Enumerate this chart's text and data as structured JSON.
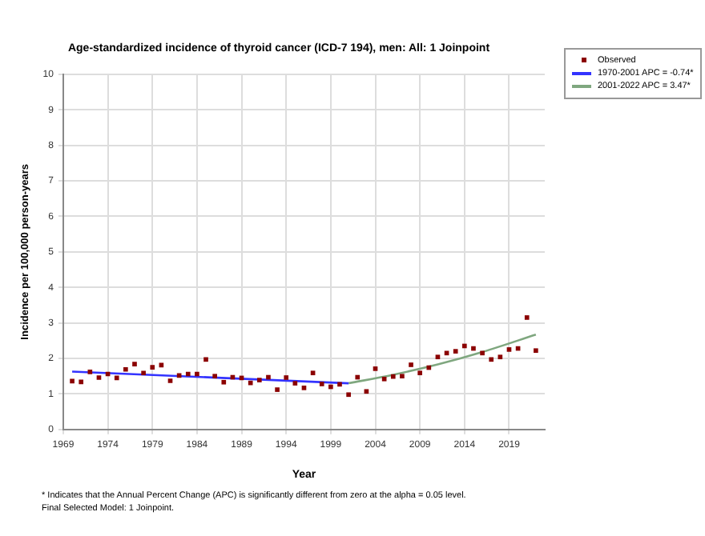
{
  "chart_data": {
    "type": "scatter",
    "title": "Age-standardized incidence of thyroid cancer (ICD-7 194), men: All: 1 Joinpoint",
    "xlabel": "Year",
    "ylabel": "Incidence per 100,000 person-years",
    "xlim": [
      1969,
      2023
    ],
    "xticks": [
      1969,
      1974,
      1979,
      1984,
      1989,
      1994,
      1999,
      2004,
      2009,
      2014,
      2019
    ],
    "ylim": [
      0,
      10
    ],
    "yticks": [
      0,
      1,
      2,
      3,
      4,
      5,
      6,
      7,
      8,
      9,
      10
    ],
    "grid": true,
    "legend": "top right",
    "series": [
      {
        "name": "Observed",
        "marker": "square",
        "color": "#8b0000",
        "x": [
          1970,
          1971,
          1972,
          1973,
          1974,
          1975,
          1976,
          1977,
          1978,
          1979,
          1980,
          1981,
          1982,
          1983,
          1984,
          1985,
          1986,
          1987,
          1988,
          1989,
          1990,
          1991,
          1992,
          1993,
          1994,
          1995,
          1996,
          1997,
          1998,
          1999,
          2000,
          2001,
          2002,
          2003,
          2004,
          2005,
          2006,
          2007,
          2008,
          2009,
          2010,
          2011,
          2012,
          2013,
          2014,
          2015,
          2016,
          2017,
          2018,
          2019,
          2020,
          2021,
          2022
        ],
        "values": [
          1.36,
          1.34,
          1.62,
          1.46,
          1.56,
          1.45,
          1.69,
          1.84,
          1.59,
          1.75,
          1.81,
          1.37,
          1.52,
          1.56,
          1.56,
          1.97,
          1.5,
          1.33,
          1.47,
          1.45,
          1.31,
          1.39,
          1.47,
          1.12,
          1.46,
          1.3,
          1.17,
          1.59,
          1.28,
          1.2,
          1.27,
          0.98,
          1.47,
          1.07,
          1.71,
          1.42,
          1.49,
          1.5,
          1.82,
          1.59,
          1.74,
          2.04,
          2.15,
          2.2,
          2.35,
          2.28,
          2.15,
          1.97,
          2.04,
          2.25,
          2.28,
          3.15,
          2.22
        ]
      },
      {
        "name": "1970-2001 APC = -0.74*",
        "type": "line",
        "marker": "none",
        "color": "#3333ff",
        "x": [
          1970,
          2001
        ],
        "values": [
          1.63,
          1.3
        ]
      },
      {
        "name": "2001-2022 APC = 3.47*",
        "type": "line",
        "marker": "none",
        "color": "#7fa77f",
        "x": [
          2001,
          2006,
          2011,
          2016,
          2022
        ],
        "values": [
          1.3,
          1.54,
          1.83,
          2.18,
          2.67
        ]
      }
    ],
    "annotations": [
      "* Indicates that the Annual Percent Change (APC) is significantly different from zero at the alpha = 0.05 level.",
      "Final Selected Model: 1 Joinpoint."
    ]
  }
}
